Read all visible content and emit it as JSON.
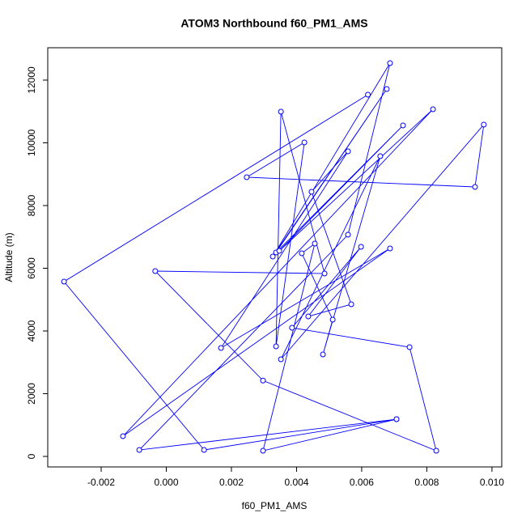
{
  "chart_data": {
    "type": "line_points",
    "title": "ATOM3 Northbound f60_PM1_AMS",
    "x_label": "f60_PM1_AMS",
    "y_label": "Altitude (m)",
    "color": "#0000ff",
    "x": [
      0.00619,
      -0.00314,
      0.00116,
      0.00707,
      -0.00083,
      0.00558,
      0.00687,
      0.00327,
      0.00677,
      0.00337,
      0.00727,
      0.00347,
      0.00819,
      -0.00133,
      0.00687,
      0.00168,
      0.00558,
      0.00446,
      0.00568,
      0.00436,
      0.00598,
      0.00386,
      0.00747,
      0.00829,
      0.00297,
      -0.00034,
      0.00486,
      0.00352,
      0.00337,
      0.00424,
      0.00247,
      0.00948,
      0.00975,
      0.00352,
      0.00657,
      0.00481,
      0.00511,
      0.00416,
      0.00456,
      0.00297,
      0.00707
    ],
    "values": [
      11535,
      5574,
      206,
      1187,
      206,
      7071,
      12542,
      6374,
      11716,
      6503,
      10555,
      6555,
      11071,
      645,
      6632,
      3458,
      9729,
      8439,
      4852,
      4465,
      6684,
      4103,
      3484,
      181,
      2419,
      5910,
      5832,
      10994,
      3510,
      10013,
      8903,
      8594,
      10581,
      3097,
      9574,
      3252,
      4361,
      6477,
      6787,
      181,
      1187
    ],
    "xlim": [
      -0.00364,
      0.0103
    ],
    "ylim": [
      -335,
      13032
    ],
    "xticks": [
      {
        "value": -0.002,
        "label": "-0.002"
      },
      {
        "value": 0,
        "label": "0.000"
      },
      {
        "value": 0.002,
        "label": "0.002"
      },
      {
        "value": 0.004,
        "label": "0.004"
      },
      {
        "value": 0.006,
        "label": "0.006"
      },
      {
        "value": 0.008,
        "label": "0.008"
      },
      {
        "value": 0.01,
        "label": "0.010"
      }
    ],
    "yticks": [
      0,
      2000,
      4000,
      6000,
      8000,
      10000,
      12000
    ]
  }
}
